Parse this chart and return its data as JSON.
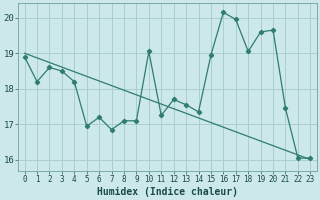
{
  "xlabel": "Humidex (Indice chaleur)",
  "ylabel": "",
  "bg_color": "#cce8e8",
  "grid_color": "#aacfcf",
  "line_color": "#2e7d6e",
  "xlim": [
    -0.5,
    23.5
  ],
  "ylim": [
    15.7,
    20.4
  ],
  "yticks": [
    16,
    17,
    18,
    19,
    20
  ],
  "xticks": [
    0,
    1,
    2,
    3,
    4,
    5,
    6,
    7,
    8,
    9,
    10,
    11,
    12,
    13,
    14,
    15,
    16,
    17,
    18,
    19,
    20,
    21,
    22,
    23
  ],
  "series1_x": [
    0,
    1,
    2,
    3,
    4,
    5,
    6,
    7,
    8,
    9,
    10,
    11,
    12,
    13,
    14,
    15,
    16,
    17,
    18,
    19,
    20,
    21,
    22,
    23
  ],
  "series1_y": [
    18.9,
    18.2,
    18.6,
    18.5,
    18.2,
    16.95,
    17.2,
    16.85,
    17.1,
    17.1,
    19.05,
    17.25,
    17.7,
    17.55,
    17.35,
    18.95,
    20.15,
    19.95,
    19.05,
    19.6,
    19.65,
    17.45,
    16.05,
    16.05
  ],
  "series2_x": [
    0,
    1,
    2,
    3,
    4,
    5,
    6,
    7,
    8,
    9,
    10,
    11,
    12,
    13,
    14,
    15,
    16,
    17,
    18,
    19,
    20,
    21,
    22,
    23
  ],
  "series2_y": [
    19.0,
    18.87,
    18.74,
    18.61,
    18.48,
    18.35,
    18.22,
    18.09,
    17.96,
    17.83,
    17.7,
    17.57,
    17.44,
    17.31,
    17.18,
    17.05,
    16.92,
    16.79,
    16.66,
    16.53,
    16.4,
    16.27,
    16.14,
    16.01
  ]
}
